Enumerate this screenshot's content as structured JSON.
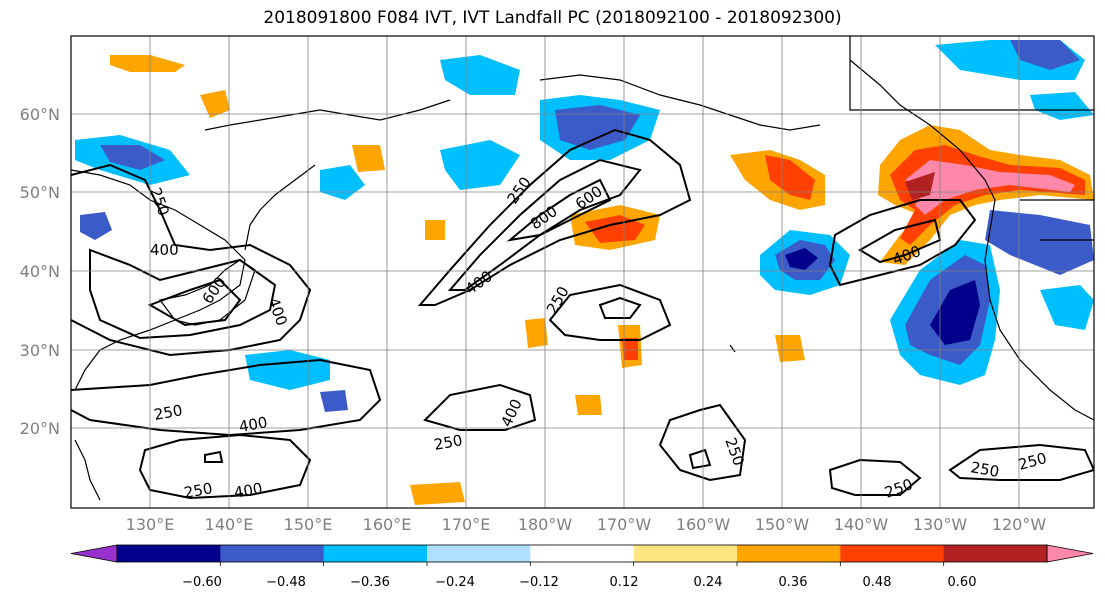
{
  "title": "2018091800 F084 IVT, IVT Landfall PC (2018092100 - 2018092300)",
  "map": {
    "lat_labels": [
      "60°N",
      "50°N",
      "40°N",
      "30°N",
      "20°N"
    ],
    "lon_labels": [
      "130°E",
      "140°E",
      "150°E",
      "160°E",
      "170°E",
      "180°W",
      "170°W",
      "160°W",
      "150°W",
      "140°W",
      "130°W",
      "120°W"
    ],
    "ivt_contour_levels": [
      250,
      400,
      600,
      800
    ],
    "contour_labels": [
      "250",
      "400",
      "600",
      "250",
      "800",
      "600",
      "400",
      "250",
      "400",
      "250",
      "400",
      "250",
      "400",
      "250",
      "400",
      "250",
      "250",
      "250",
      "400",
      "250"
    ]
  },
  "colorbar": {
    "colors": [
      "#9932cc",
      "#00008b",
      "#3a5bc8",
      "#00bfff",
      "#b0e0ff",
      "#ffffff",
      "#ffe680",
      "#ffa500",
      "#ff4000",
      "#b22222",
      "#ff88aa"
    ],
    "ticks": [
      "−0.60",
      "−0.48",
      "−0.36",
      "−0.24",
      "−0.12",
      "0.12",
      "0.24",
      "0.36",
      "0.48",
      "0.60"
    ]
  }
}
